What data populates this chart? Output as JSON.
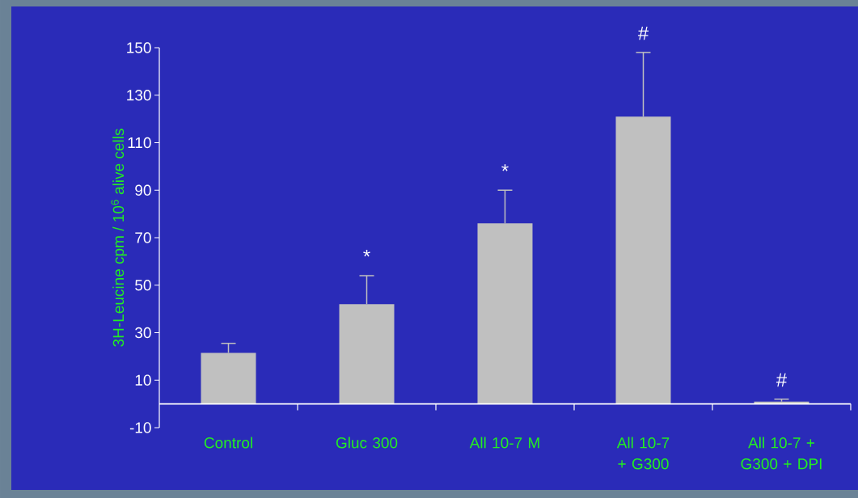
{
  "chart_data": {
    "type": "bar",
    "ylabel": "3H-Leucine cpm / 10$^{6}$ alive cells",
    "categories": [
      "Control",
      "Gluc 300",
      "All 10-7 M",
      "All 10-7 + G300",
      "All 10-7 + G300 + DPI"
    ],
    "values": [
      21.5,
      42,
      76,
      121,
      1
    ],
    "errors": [
      [
        21.5,
        25.5
      ],
      [
        42,
        54
      ],
      [
        76,
        90
      ],
      [
        121,
        148
      ],
      [
        1,
        2
      ]
    ],
    "color": "#c0c0c0",
    "ylim": [
      -10,
      150
    ],
    "yticks": [
      -10,
      10,
      30,
      50,
      70,
      90,
      110,
      130,
      150
    ],
    "annotations": [
      {
        "text": "*",
        "x": "Gluc 300",
        "y": 54
      },
      {
        "text": "*",
        "x": "All 10-7 M",
        "y": 90
      },
      {
        "text": "#",
        "x": "All 10-7 + G300",
        "y": 148
      },
      {
        "text": "#",
        "x": "All 10-7 + G300 + DPI",
        "y": 2
      }
    ]
  }
}
